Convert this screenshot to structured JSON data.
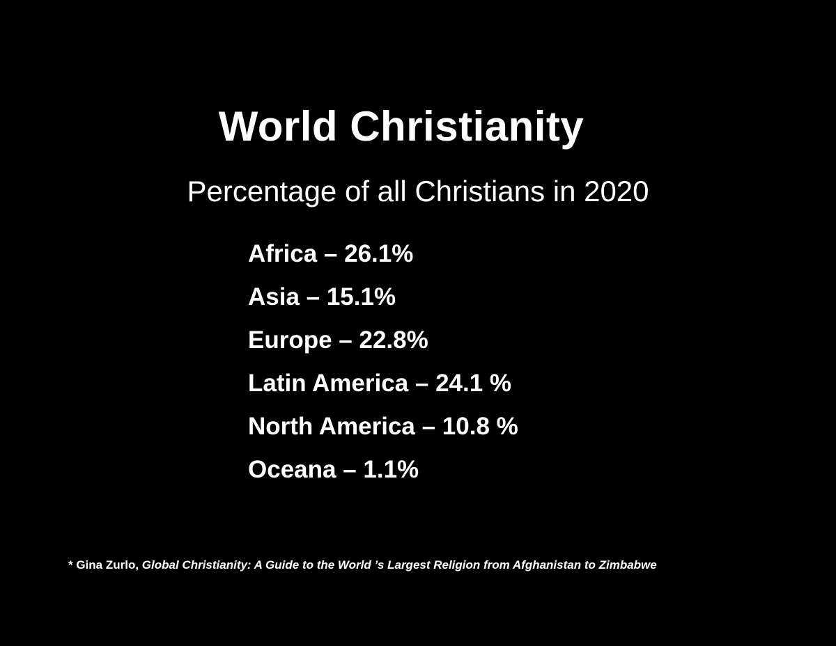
{
  "title": "World Christianity",
  "subtitle": "Percentage of all Christians in 2020",
  "regions": [
    {
      "text": "Africa – 26.1%"
    },
    {
      "text": "Asia – 15.1%"
    },
    {
      "text": "Europe – 22.8%"
    },
    {
      "text": "Latin America – 24.1 %"
    },
    {
      "text": "North America – 10.8 %"
    },
    {
      "text": "Oceana – 1.1%"
    }
  ],
  "footnote": {
    "author": "* Gina Zurlo, ",
    "book": "Global Christianity: A Guide to the World ’s Largest Religion from Afghanistan to Zimbabwe"
  },
  "colors": {
    "background": "#000000",
    "text": "#ffffff"
  }
}
